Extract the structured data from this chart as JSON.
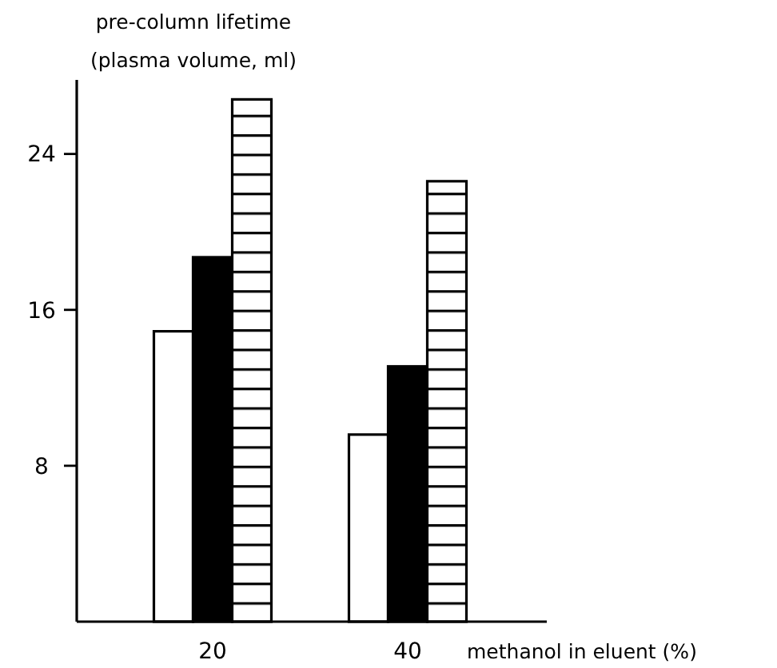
{
  "chart_data": {
    "type": "bar",
    "ylabel": "pre-column lifetime\n(plasma volume, ml)",
    "xlabel": "methanol in eluent (%)",
    "categories": [
      "20",
      "40"
    ],
    "series": [
      {
        "color": "#ffffff",
        "values": [
          14.9,
          9.6
        ]
      },
      {
        "color": "#000000",
        "values": [
          18.7,
          13.1
        ]
      },
      {
        "color": "#000000",
        "values": [
          26.8,
          22.6
        ]
      }
    ],
    "ylim": [
      0,
      27.8
    ],
    "yticks": [
      8,
      16,
      24
    ],
    "grid": false
  }
}
